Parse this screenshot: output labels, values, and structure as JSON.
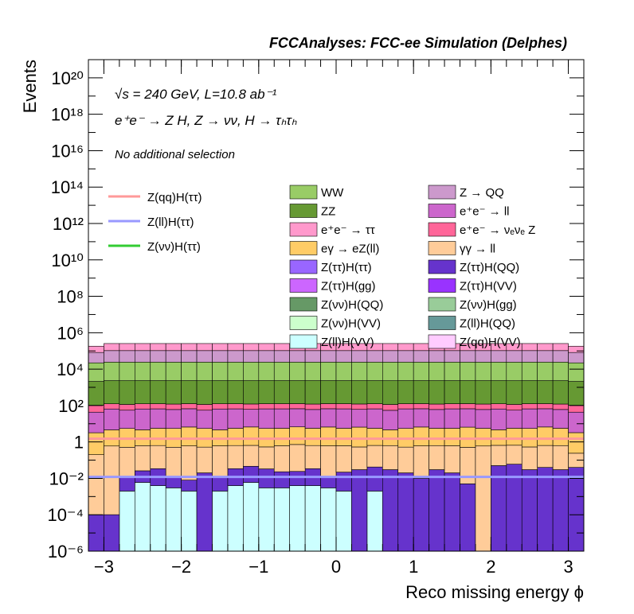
{
  "chart_data": {
    "type": "stacked-histogram",
    "title": "FCCAnalyses: FCC-ee Simulation (Delphes)",
    "annotations": [
      "√s = 240 GeV, L=10.8 ab⁻¹",
      "e⁺e⁻ → Z H, Z → νν, H → τₕτₕ",
      "No additional selection"
    ],
    "xlabel": "Reco missing energy ϕ",
    "ylabel": "Events",
    "xlim": [
      -3.2,
      3.2
    ],
    "ylim": [
      1e-06,
      1e+21
    ],
    "yscale": "log",
    "x_ticks": [
      "−3",
      "−2",
      "−1",
      "0",
      "1",
      "2",
      "3"
    ],
    "y_ticks": [
      "10⁻⁶",
      "10⁻⁴",
      "10⁻²",
      "1",
      "10²",
      "10⁴",
      "10⁶",
      "10⁸",
      "10¹⁰",
      "10¹²",
      "10¹⁴",
      "10¹⁶",
      "10¹⁸",
      "10²⁰"
    ],
    "n_bins": 32,
    "signal_lines": [
      {
        "name": "Z(qq)H(ττ)",
        "color": "#ff9999",
        "value": 1.5
      },
      {
        "name": "Z(ll)H(ττ)",
        "color": "#9999ff",
        "value": 0.012
      },
      {
        "name": "Z(νν)H(ττ)",
        "color": "#33cc33",
        "value": 0.0
      }
    ],
    "stack": [
      {
        "name": "Z(ll)H(VV)",
        "color": "#ccffff",
        "bin_values": [
          0.0,
          0.0,
          0.002,
          0.006,
          0.004,
          0.003,
          0.002,
          0.0,
          0.002,
          0.004,
          0.006,
          0.003,
          0.003,
          0.004,
          0.004,
          0.003,
          0.002,
          0.0,
          0.002,
          0.0,
          0.0,
          0.0,
          0.0,
          0.0,
          0.0,
          0.0,
          0.0,
          0.0,
          0.0,
          0.0,
          0.0,
          0.0
        ]
      },
      {
        "name": "Z(ll)H(QQ)",
        "color": "#669999",
        "bin_values": [
          0.0,
          0.0,
          0.0,
          0.0,
          0.0,
          0.0,
          0.0,
          0.0,
          0.0,
          0.0,
          0.0,
          0.0,
          0.0,
          0.0,
          0.0,
          0.0,
          0.0,
          0.0,
          0.0,
          0.0,
          0.0,
          0.0,
          0.0,
          0.0,
          0.0,
          0.0,
          0.0,
          0.0,
          0.0,
          0.0,
          0.0,
          0.0
        ]
      },
      {
        "name": "Z(qq)H(VV)",
        "color": "#ffccff",
        "bin_values": [
          0.0,
          0.0,
          0.0,
          0.0,
          0.0,
          0.0,
          0.0,
          0.0,
          0.0,
          0.0,
          0.0,
          0.0,
          0.0,
          0.0,
          0.0,
          0.0,
          0.0,
          0.0,
          0.0,
          0.0,
          0.0,
          0.0,
          0.0,
          0.0,
          0.0,
          0.0,
          0.0,
          0.0,
          0.0,
          0.0,
          0.0,
          0.0
        ]
      },
      {
        "name": "Z(ττ)H(gg)",
        "color": "#cc66ff",
        "bin_values": [
          0.0,
          0.0,
          0.0,
          0.0,
          0.0,
          0.0,
          0.0,
          0.0,
          0.0,
          0.0,
          0.0,
          0.0,
          0.0,
          0.0,
          0.0,
          0.0,
          0.0,
          0.0,
          0.0,
          0.0,
          0.0,
          0.0,
          0.0,
          0.0,
          0.0,
          0.0,
          0.0,
          0.0,
          0.0,
          0.0,
          0.0,
          0.0
        ]
      },
      {
        "name": "Z(ττ)H(QQ)",
        "color": "#6633cc",
        "bin_values": [
          0.0001,
          0.0001,
          0.01,
          0.02,
          0.03,
          0.01,
          0.006,
          0.02,
          0.01,
          0.03,
          0.04,
          0.03,
          0.02,
          0.02,
          0.03,
          0.01,
          0.02,
          0.03,
          0.04,
          0.03,
          0.02,
          0.01,
          0.03,
          0.02,
          0.005,
          0.0,
          0.05,
          0.06,
          0.03,
          0.04,
          0.03,
          0.04
        ]
      },
      {
        "name": "γγ → ll",
        "color": "#ffcc99",
        "bin_values": [
          0.2,
          0.6,
          0.5,
          0.6,
          0.6,
          0.5,
          0.6,
          0.5,
          0.6,
          0.6,
          0.6,
          0.5,
          0.6,
          0.7,
          0.6,
          0.6,
          0.6,
          0.5,
          0.6,
          0.6,
          0.5,
          0.6,
          0.6,
          0.6,
          0.5,
          0.6,
          0.6,
          0.6,
          0.5,
          0.6,
          0.6,
          0.2
        ]
      },
      {
        "name": "eγ → eZ(ll)",
        "color": "#ffcc66",
        "bin_values": [
          3,
          4,
          5,
          4,
          5,
          5,
          6,
          5,
          4,
          5,
          6,
          5,
          5,
          6,
          5,
          6,
          5,
          6,
          5,
          4,
          5,
          6,
          5,
          5,
          6,
          5,
          4,
          5,
          5,
          6,
          5,
          3
        ]
      },
      {
        "name": "e⁺e⁻ → ll",
        "color": "#cc66cc",
        "bin_values": [
          40,
          60,
          50,
          60,
          60,
          55,
          60,
          50,
          60,
          60,
          55,
          60,
          60,
          60,
          55,
          60,
          60,
          55,
          60,
          50,
          60,
          60,
          55,
          60,
          60,
          55,
          60,
          50,
          60,
          60,
          55,
          40
        ]
      },
      {
        "name": "e⁺e⁻ → νₑνₑ Z",
        "color": "#ff6699",
        "bin_values": [
          60,
          60,
          60,
          60,
          60,
          60,
          60,
          60,
          60,
          60,
          60,
          60,
          60,
          60,
          60,
          60,
          60,
          60,
          60,
          60,
          60,
          60,
          60,
          60,
          60,
          60,
          60,
          60,
          60,
          60,
          60,
          60
        ]
      },
      {
        "name": "ZZ",
        "color": "#669933",
        "bin_values": [
          2000,
          2200,
          2200,
          2200,
          2200,
          2200,
          2200,
          2200,
          2200,
          2200,
          2200,
          2200,
          2200,
          2200,
          2200,
          2200,
          2200,
          2200,
          2200,
          2200,
          2200,
          2200,
          2200,
          2200,
          2200,
          2200,
          2200,
          2200,
          2200,
          2200,
          2200,
          2000
        ]
      },
      {
        "name": "WW",
        "color": "#99cc66",
        "bin_values": [
          20000,
          22000,
          22000,
          22000,
          22000,
          22000,
          22000,
          22000,
          22000,
          22000,
          22000,
          22000,
          22000,
          22000,
          22000,
          22000,
          22000,
          22000,
          22000,
          22000,
          22000,
          22000,
          22000,
          22000,
          22000,
          22000,
          22000,
          22000,
          22000,
          22000,
          22000,
          20000
        ]
      },
      {
        "name": "Z → QQ",
        "color": "#cc99cc",
        "bin_values": [
          60000,
          80000,
          80000,
          80000,
          80000,
          80000,
          80000,
          80000,
          80000,
          80000,
          80000,
          80000,
          80000,
          80000,
          80000,
          80000,
          80000,
          80000,
          80000,
          80000,
          80000,
          80000,
          80000,
          80000,
          80000,
          80000,
          80000,
          80000,
          80000,
          80000,
          80000,
          60000
        ]
      },
      {
        "name": "e⁺e⁻ → ττ",
        "color": "#ff99cc",
        "bin_values": [
          100000,
          150000,
          150000,
          150000,
          150000,
          150000,
          150000,
          150000,
          150000,
          150000,
          150000,
          150000,
          150000,
          150000,
          150000,
          150000,
          150000,
          150000,
          150000,
          150000,
          150000,
          150000,
          150000,
          150000,
          150000,
          150000,
          150000,
          150000,
          150000,
          150000,
          150000,
          100000
        ]
      }
    ],
    "legend_left": [
      {
        "name": "Z(qq)H(ττ)",
        "color": "#ff9999"
      },
      {
        "name": "Z(ll)H(ττ)",
        "color": "#9999ff"
      },
      {
        "name": "Z(νν)H(ττ)",
        "color": "#33cc33"
      }
    ],
    "legend_col1": [
      {
        "name": "WW",
        "color": "#99cc66"
      },
      {
        "name": "ZZ",
        "color": "#669933"
      },
      {
        "name": "e⁺e⁻ → ττ",
        "color": "#ff99cc"
      },
      {
        "name": "eγ → eZ(ll)",
        "color": "#ffcc66"
      },
      {
        "name": "Z(ττ)H(ττ)",
        "color": "#9966ff"
      },
      {
        "name": "Z(ττ)H(gg)",
        "color": "#cc66ff"
      },
      {
        "name": "Z(νν)H(QQ)",
        "color": "#669966"
      },
      {
        "name": "Z(νν)H(VV)",
        "color": "#ccffcc"
      },
      {
        "name": "Z(ll)H(VV)",
        "color": "#ccffff"
      }
    ],
    "legend_col2": [
      {
        "name": "Z → QQ",
        "color": "#cc99cc"
      },
      {
        "name": "e⁺e⁻ → ll",
        "color": "#cc66cc"
      },
      {
        "name": "e⁺e⁻ → νₑνₑ Z",
        "color": "#ff6699"
      },
      {
        "name": "γγ → ll",
        "color": "#ffcc99"
      },
      {
        "name": "Z(ττ)H(QQ)",
        "color": "#6633cc"
      },
      {
        "name": "Z(ττ)H(VV)",
        "color": "#9933ff"
      },
      {
        "name": "Z(νν)H(gg)",
        "color": "#99cc99"
      },
      {
        "name": "Z(ll)H(QQ)",
        "color": "#669999"
      },
      {
        "name": "Z(qq)H(VV)",
        "color": "#ffccff"
      }
    ]
  }
}
